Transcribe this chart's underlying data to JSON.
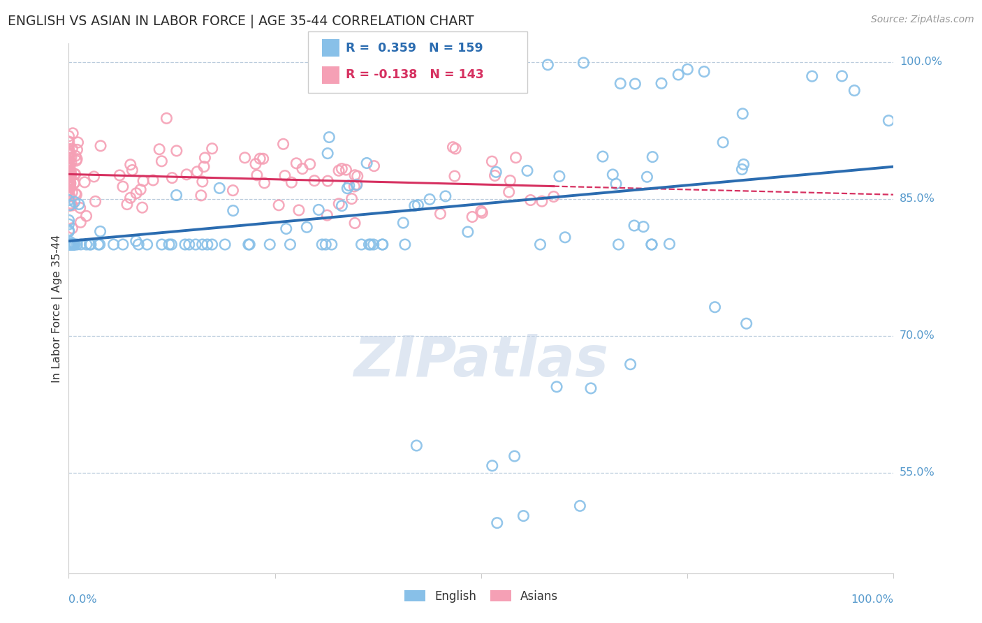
{
  "title": "ENGLISH VS ASIAN IN LABOR FORCE | AGE 35-44 CORRELATION CHART",
  "source": "Source: ZipAtlas.com",
  "ylabel": "In Labor Force | Age 35-44",
  "english_R": 0.359,
  "english_N": 159,
  "asian_R": -0.138,
  "asian_N": 143,
  "xlim": [
    0.0,
    1.0
  ],
  "ylim": [
    0.44,
    1.02
  ],
  "ytick_vals": [
    0.55,
    0.7,
    0.85,
    1.0
  ],
  "ytick_labels": [
    "55.0%",
    "70.0%",
    "85.0%",
    "100.0%"
  ],
  "english_color": "#88C0E8",
  "asian_color": "#F5A0B5",
  "english_line_color": "#2B6CB0",
  "asian_line_color": "#D63060",
  "bg_color": "#FFFFFF",
  "title_color": "#2B2B2B",
  "axis_color": "#5599CC",
  "grid_color": "#BBCCDD",
  "watermark_color": "#C5D5E8",
  "source_color": "#999999",
  "legend_eng_text_color": "#2B6CB0",
  "legend_asian_text_color": "#D63060"
}
